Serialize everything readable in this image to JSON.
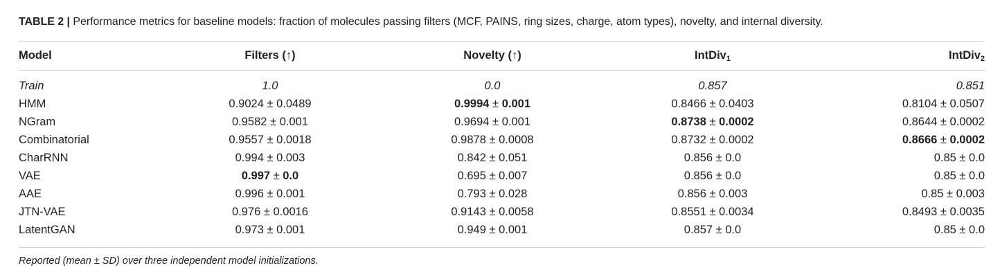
{
  "caption": {
    "label": "TABLE 2 |",
    "text": "Performance metrics for baseline models: fraction of molecules passing filters (MCF, PAINS, ring sizes, charge, atom types), novelty, and internal diversity."
  },
  "table": {
    "headers": {
      "model": "Model",
      "filters": "Filters (↑)",
      "novelty": "Novelty (↑)",
      "intdiv1_base": "IntDiv",
      "intdiv1_sub": "1",
      "intdiv2_base": "IntDiv",
      "intdiv2_sub": "2"
    },
    "rows": [
      {
        "model": "Train",
        "filters": "1.0",
        "novelty": "0.0",
        "intdiv1": "0.857",
        "intdiv2": "0.851"
      },
      {
        "model": "HMM",
        "filters": "0.9024 ± 0.0489",
        "novelty": "0.9994 ± 0.001",
        "intdiv1": "0.8466 ± 0.0403",
        "intdiv2": "0.8104 ± 0.0507"
      },
      {
        "model": "NGram",
        "filters": "0.9582 ± 0.001",
        "novelty": "0.9694 ± 0.001",
        "intdiv1_bold": "0.8738",
        "intdiv1_pm": " ± ",
        "intdiv1_sd": "0.0002",
        "intdiv2": "0.8644 ± 0.0002"
      },
      {
        "model": "Combinatorial",
        "filters": "0.9557 ± 0.0018",
        "novelty": "0.9878 ± 0.0008",
        "intdiv1": "0.8732 ± 0.0002",
        "intdiv2_bold": "0.8666",
        "intdiv2_pm": " ± ",
        "intdiv2_sd": "0.0002"
      },
      {
        "model": "CharRNN",
        "filters": "0.994 ± 0.003",
        "novelty": "0.842 ± 0.051",
        "intdiv1": "0.856 ± 0.0",
        "intdiv2": "0.85 ± 0.0"
      },
      {
        "model": "VAE",
        "filters_bold": "0.997",
        "filters_pm": " ± ",
        "filters_sd": "0.0",
        "novelty": "0.695 ± 0.007",
        "intdiv1": "0.856 ± 0.0",
        "intdiv2": "0.85 ± 0.0"
      },
      {
        "model": "AAE",
        "filters": "0.996 ± 0.001",
        "novelty": "0.793 ± 0.028",
        "intdiv1": "0.856 ± 0.003",
        "intdiv2": "0.85 ± 0.003"
      },
      {
        "model": "JTN-VAE",
        "filters": "0.976 ± 0.0016",
        "novelty": "0.9143 ± 0.0058",
        "intdiv1": "0.8551 ± 0.0034",
        "intdiv2": "0.8493 ± 0.0035"
      },
      {
        "model": "LatentGAN",
        "filters": "0.973 ± 0.001",
        "novelty": "0.949 ± 0.001",
        "intdiv1": "0.857 ± 0.0",
        "intdiv2": "0.85 ± 0.0"
      }
    ],
    "hmm_novelty_bold": "0.9994",
    "hmm_novelty_pm": " ± ",
    "hmm_novelty_sd": "0.001"
  },
  "footnote": "Reported (mean ± SD) over three independent model initializations."
}
